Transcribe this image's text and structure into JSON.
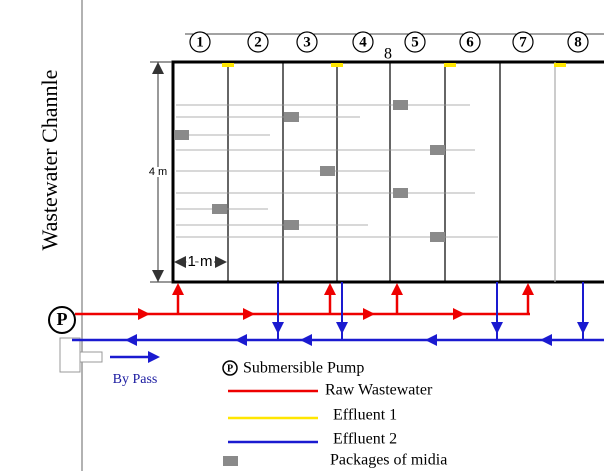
{
  "side_label": "Wastewater Channle",
  "compartments": [
    "1",
    "2",
    "3",
    "4",
    "5",
    "6",
    "7",
    "8"
  ],
  "overlap_label": "8",
  "dimensions": {
    "height": "4 m",
    "width": "1 m"
  },
  "pump_symbol": "P",
  "bypass": "By Pass",
  "legend": {
    "pump_symbol": "P",
    "pump": "Submersible Pump",
    "raw": "Raw Wastewater",
    "effluent1": "Effluent 1",
    "effluent2": "Effluent 2",
    "media": "Packages of midia"
  }
}
